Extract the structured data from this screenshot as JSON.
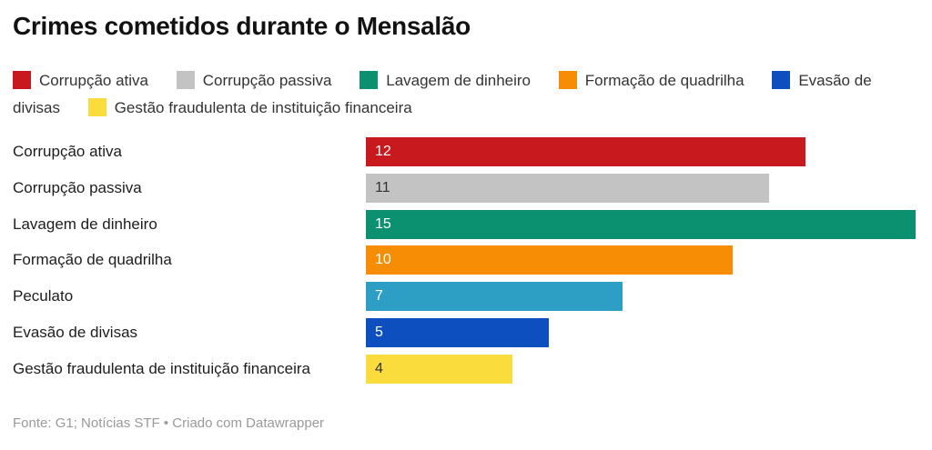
{
  "title": "Crimes cometidos durante o Mensalão",
  "legend": {
    "items": [
      {
        "label": "Corrupção ativa",
        "color": "#c8191e"
      },
      {
        "label": "Corrupção passiva",
        "color": "#c3c3c3"
      },
      {
        "label": "Lavagem de dinheiro",
        "color": "#0b9170"
      },
      {
        "label": "Formação de quadrilha",
        "color": "#f78c05"
      },
      {
        "label": "Evasão de divisas",
        "color": "#0d4fbe"
      },
      {
        "label": "Gestão fraudulenta de instituição financeira",
        "color": "#fadd3c"
      }
    ]
  },
  "chart_data": {
    "type": "bar",
    "orientation": "horizontal",
    "title": "Crimes cometidos durante o Mensalão",
    "xlabel": "",
    "ylabel": "",
    "xlim": [
      0,
      15
    ],
    "grid": false,
    "legend_position": "top",
    "categories": [
      "Corrupção ativa",
      "Corrupção passiva",
      "Lavagem de dinheiro",
      "Formação de quadrilha",
      "Peculato",
      "Evasão de divisas",
      "Gestão fraudulenta de instituição financeira"
    ],
    "values": [
      12,
      11,
      15,
      10,
      7,
      5,
      4
    ],
    "bar_colors": [
      "#c8191e",
      "#c3c3c3",
      "#0b9170",
      "#f78c05",
      "#2d9fc5",
      "#0d4fbe",
      "#fadd3c"
    ],
    "value_label_colors": [
      "#ffffff",
      "#333333",
      "#ffffff",
      "#ffffff",
      "#ffffff",
      "#ffffff",
      "#333333"
    ]
  },
  "footer": {
    "text": "Fonte: G1; Notícias STF • Criado com Datawrapper"
  }
}
